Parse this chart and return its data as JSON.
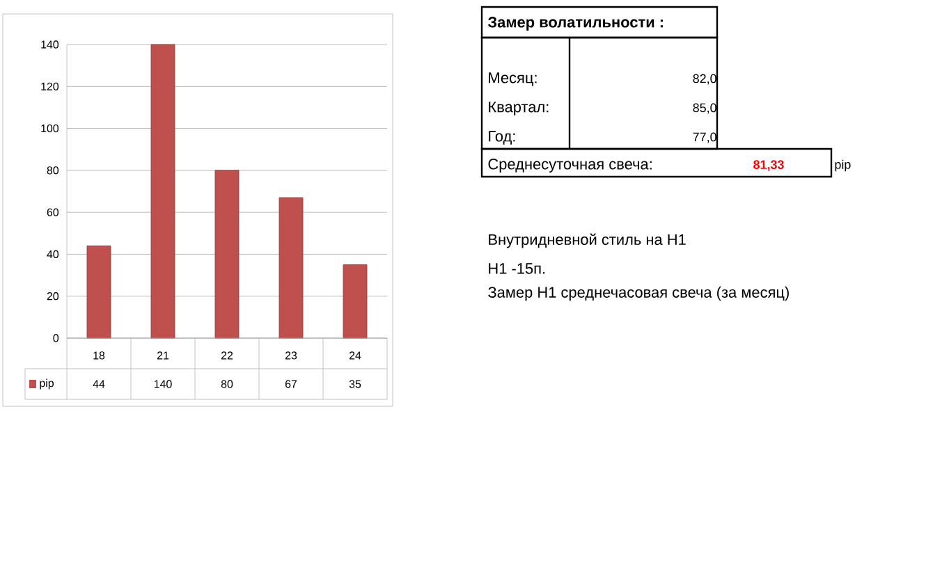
{
  "chart_data": {
    "type": "bar",
    "categories": [
      "18",
      "21",
      "22",
      "23",
      "24"
    ],
    "series": [
      {
        "name": "pip",
        "color": "#c0504d",
        "values": [
          44,
          140,
          80,
          67,
          35
        ]
      }
    ],
    "ylim": [
      0,
      140
    ],
    "yticks": [
      0,
      20,
      40,
      60,
      80,
      100,
      120,
      140
    ],
    "grid": "y",
    "data_labels": true,
    "legend": "bottom left",
    "annotations": [
      "Замер  волатильности  :",
      "Месяц:",
      "82,0",
      "Квартал:",
      "85,0",
      "Год:",
      "77,0",
      "Среднесуточная свеча:",
      "81,33",
      "pip",
      "Внутридневной стиль на H1",
      "H1 -15п.",
      "Замер H1 среднечасовая свеча (за месяц)"
    ]
  }
}
